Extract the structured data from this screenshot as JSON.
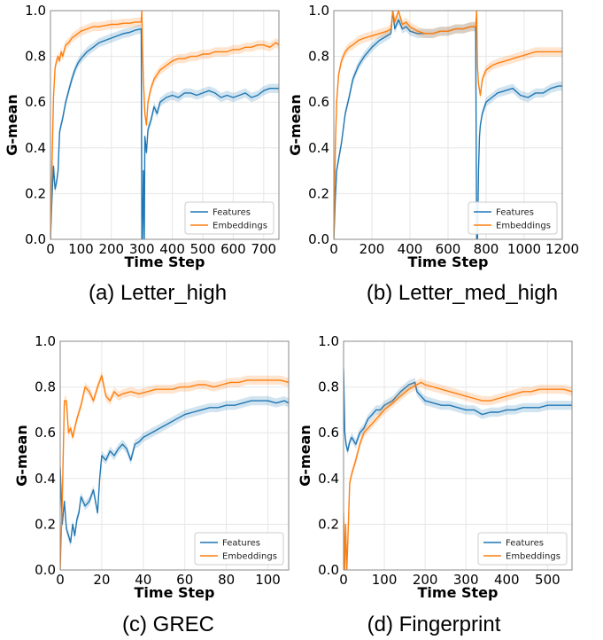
{
  "colors": {
    "features": "#1f77b4",
    "embeddings": "#ff7f0e",
    "grid": "#e6e6e6"
  },
  "chart_data": [
    {
      "type": "line",
      "caption": "(a) Letter_high",
      "xlabel": "Time Step",
      "ylabel": "G-mean",
      "xlim": [
        0,
        750
      ],
      "ylim": [
        0,
        1
      ],
      "xticks": [
        "0",
        "100",
        "200",
        "300",
        "400",
        "500",
        "600",
        "700"
      ],
      "yticks": [
        "0.0",
        "0.2",
        "0.4",
        "0.6",
        "0.8",
        "1.0"
      ],
      "grid": true,
      "legend": "bottom-right",
      "series": [
        {
          "name": "Features",
          "color": "#1f77b4",
          "x": [
            0,
            5,
            10,
            15,
            20,
            25,
            30,
            35,
            40,
            50,
            60,
            70,
            80,
            90,
            100,
            120,
            140,
            160,
            180,
            200,
            220,
            240,
            260,
            280,
            298,
            300,
            302,
            305,
            308,
            310,
            315,
            320,
            330,
            340,
            350,
            360,
            380,
            400,
            420,
            440,
            460,
            480,
            500,
            520,
            540,
            560,
            580,
            600,
            620,
            640,
            660,
            680,
            700,
            720,
            740,
            750
          ],
          "y": [
            0.0,
            0.18,
            0.32,
            0.22,
            0.25,
            0.3,
            0.47,
            0.5,
            0.53,
            0.6,
            0.65,
            0.7,
            0.74,
            0.77,
            0.79,
            0.82,
            0.84,
            0.86,
            0.87,
            0.88,
            0.89,
            0.9,
            0.905,
            0.915,
            0.92,
            0.0,
            0.0,
            0.3,
            0.0,
            0.45,
            0.38,
            0.48,
            0.52,
            0.58,
            0.55,
            0.6,
            0.62,
            0.63,
            0.62,
            0.64,
            0.64,
            0.63,
            0.64,
            0.65,
            0.64,
            0.62,
            0.63,
            0.62,
            0.63,
            0.64,
            0.62,
            0.63,
            0.65,
            0.66,
            0.66,
            0.66
          ]
        },
        {
          "name": "Embeddings",
          "color": "#ff7f0e",
          "x": [
            0,
            5,
            10,
            15,
            20,
            25,
            30,
            35,
            40,
            50,
            60,
            70,
            80,
            90,
            100,
            120,
            140,
            160,
            180,
            200,
            220,
            240,
            260,
            280,
            298,
            300,
            302,
            305,
            310,
            315,
            320,
            330,
            340,
            350,
            360,
            380,
            400,
            420,
            440,
            460,
            480,
            500,
            520,
            540,
            560,
            580,
            600,
            620,
            640,
            660,
            680,
            700,
            720,
            740,
            750
          ],
          "y": [
            0.0,
            0.32,
            0.62,
            0.75,
            0.78,
            0.8,
            0.78,
            0.82,
            0.8,
            0.85,
            0.86,
            0.88,
            0.89,
            0.9,
            0.91,
            0.92,
            0.93,
            0.93,
            0.935,
            0.94,
            0.94,
            0.945,
            0.945,
            0.95,
            0.95,
            1.0,
            0.85,
            0.7,
            0.55,
            0.5,
            0.6,
            0.66,
            0.7,
            0.72,
            0.74,
            0.76,
            0.78,
            0.79,
            0.79,
            0.8,
            0.8,
            0.81,
            0.81,
            0.82,
            0.82,
            0.82,
            0.83,
            0.83,
            0.84,
            0.84,
            0.85,
            0.85,
            0.84,
            0.86,
            0.85
          ]
        }
      ]
    },
    {
      "type": "line",
      "caption": "(b) Letter_med_high",
      "xlabel": "Time Step",
      "ylabel": "G-mean",
      "xlim": [
        0,
        1200
      ],
      "ylim": [
        0,
        1
      ],
      "xticks": [
        "0",
        "200",
        "400",
        "600",
        "800",
        "1000",
        "1200"
      ],
      "yticks": [
        "0.0",
        "0.2",
        "0.4",
        "0.6",
        "0.8",
        "1.0"
      ],
      "grid": true,
      "legend": "bottom-right",
      "series": [
        {
          "name": "Features",
          "color": "#1f77b4",
          "x": [
            0,
            8,
            15,
            25,
            40,
            60,
            80,
            100,
            130,
            160,
            200,
            240,
            280,
            300,
            310,
            320,
            340,
            360,
            380,
            400,
            440,
            480,
            520,
            560,
            600,
            640,
            680,
            720,
            745,
            750,
            755,
            760,
            765,
            770,
            780,
            800,
            830,
            860,
            900,
            940,
            980,
            1020,
            1060,
            1100,
            1140,
            1180,
            1200
          ],
          "y": [
            0.0,
            0.18,
            0.3,
            0.35,
            0.42,
            0.55,
            0.62,
            0.7,
            0.76,
            0.8,
            0.84,
            0.87,
            0.89,
            0.9,
            1.0,
            0.92,
            0.96,
            0.92,
            0.93,
            0.91,
            0.9,
            0.9,
            0.9,
            0.91,
            0.91,
            0.92,
            0.92,
            0.93,
            0.93,
            0.0,
            0.0,
            0.3,
            0.45,
            0.5,
            0.55,
            0.6,
            0.62,
            0.64,
            0.65,
            0.66,
            0.63,
            0.62,
            0.64,
            0.64,
            0.66,
            0.67,
            0.67
          ]
        },
        {
          "name": "Embeddings",
          "color": "#ff7f0e",
          "x": [
            0,
            8,
            15,
            25,
            40,
            60,
            80,
            100,
            130,
            160,
            200,
            240,
            280,
            300,
            310,
            320,
            340,
            360,
            380,
            400,
            440,
            480,
            520,
            560,
            600,
            640,
            680,
            720,
            745,
            750,
            755,
            760,
            770,
            780,
            800,
            830,
            860,
            900,
            940,
            980,
            1020,
            1060,
            1100,
            1140,
            1180,
            1200
          ],
          "y": [
            0.0,
            0.4,
            0.6,
            0.72,
            0.78,
            0.82,
            0.84,
            0.85,
            0.87,
            0.88,
            0.89,
            0.9,
            0.91,
            0.92,
            1.0,
            0.95,
            1.0,
            0.94,
            0.95,
            0.93,
            0.91,
            0.9,
            0.9,
            0.91,
            0.91,
            0.92,
            0.92,
            0.93,
            0.93,
            1.0,
            0.75,
            0.68,
            0.63,
            0.7,
            0.74,
            0.76,
            0.77,
            0.78,
            0.79,
            0.8,
            0.81,
            0.82,
            0.82,
            0.82,
            0.82,
            0.82
          ]
        }
      ]
    },
    {
      "type": "line",
      "caption": "(c) GREC",
      "xlabel": "Time Step",
      "ylabel": "G-mean",
      "xlim": [
        0,
        110
      ],
      "ylim": [
        0,
        1
      ],
      "xticks": [
        "0",
        "20",
        "40",
        "60",
        "80",
        "100"
      ],
      "yticks": [
        "0.0",
        "0.2",
        "0.4",
        "0.6",
        "0.8",
        "1.0"
      ],
      "grid": true,
      "legend": "bottom-right",
      "series": [
        {
          "name": "Features",
          "color": "#1f77b4",
          "x": [
            0,
            1,
            2,
            3,
            4,
            5,
            6,
            7,
            8,
            9,
            10,
            12,
            14,
            16,
            18,
            19,
            20,
            22,
            24,
            26,
            28,
            30,
            32,
            34,
            36,
            38,
            40,
            44,
            48,
            52,
            56,
            60,
            64,
            68,
            72,
            76,
            80,
            84,
            88,
            92,
            96,
            100,
            104,
            108,
            110
          ],
          "y": [
            0.45,
            0.2,
            0.3,
            0.18,
            0.15,
            0.12,
            0.2,
            0.15,
            0.22,
            0.25,
            0.32,
            0.28,
            0.3,
            0.35,
            0.25,
            0.4,
            0.5,
            0.48,
            0.52,
            0.5,
            0.53,
            0.55,
            0.53,
            0.48,
            0.55,
            0.56,
            0.58,
            0.6,
            0.62,
            0.64,
            0.66,
            0.68,
            0.69,
            0.7,
            0.71,
            0.71,
            0.72,
            0.72,
            0.73,
            0.74,
            0.74,
            0.74,
            0.73,
            0.74,
            0.73
          ]
        },
        {
          "name": "Embeddings",
          "color": "#ff7f0e",
          "x": [
            0,
            1,
            2,
            3,
            4,
            5,
            6,
            7,
            8,
            10,
            12,
            14,
            16,
            18,
            20,
            22,
            24,
            26,
            28,
            30,
            34,
            38,
            42,
            46,
            50,
            54,
            58,
            62,
            66,
            70,
            74,
            78,
            82,
            86,
            90,
            94,
            98,
            102,
            106,
            110
          ],
          "y": [
            0.0,
            0.3,
            0.74,
            0.74,
            0.6,
            0.62,
            0.58,
            0.62,
            0.66,
            0.72,
            0.8,
            0.78,
            0.74,
            0.8,
            0.85,
            0.76,
            0.74,
            0.78,
            0.76,
            0.77,
            0.78,
            0.77,
            0.78,
            0.79,
            0.79,
            0.79,
            0.8,
            0.8,
            0.81,
            0.81,
            0.8,
            0.81,
            0.82,
            0.82,
            0.83,
            0.83,
            0.83,
            0.83,
            0.83,
            0.82
          ]
        }
      ]
    },
    {
      "type": "line",
      "caption": "(d) Fingerprint",
      "xlabel": "Time Step",
      "ylabel": "G-mean",
      "xlim": [
        0,
        560
      ],
      "ylim": [
        0,
        1
      ],
      "xticks": [
        "0",
        "100",
        "200",
        "300",
        "400",
        "500"
      ],
      "yticks": [
        "0.0",
        "0.2",
        "0.4",
        "0.6",
        "0.8",
        "1.0"
      ],
      "grid": true,
      "legend": "bottom-right",
      "series": [
        {
          "name": "Features",
          "color": "#1f77b4",
          "x": [
            0,
            3,
            6,
            10,
            15,
            20,
            30,
            40,
            50,
            60,
            70,
            80,
            90,
            100,
            120,
            140,
            160,
            175,
            180,
            190,
            200,
            220,
            240,
            260,
            280,
            300,
            320,
            340,
            360,
            380,
            400,
            420,
            440,
            460,
            480,
            500,
            520,
            540,
            560
          ],
          "y": [
            0.88,
            0.6,
            0.55,
            0.52,
            0.56,
            0.58,
            0.55,
            0.6,
            0.62,
            0.66,
            0.68,
            0.7,
            0.7,
            0.72,
            0.74,
            0.78,
            0.81,
            0.82,
            0.78,
            0.76,
            0.74,
            0.73,
            0.72,
            0.72,
            0.71,
            0.7,
            0.7,
            0.68,
            0.69,
            0.69,
            0.7,
            0.7,
            0.71,
            0.71,
            0.71,
            0.72,
            0.72,
            0.72,
            0.72
          ]
        },
        {
          "name": "Embeddings",
          "color": "#ff7f0e",
          "x": [
            0,
            3,
            5,
            8,
            10,
            15,
            20,
            25,
            30,
            40,
            50,
            60,
            70,
            80,
            90,
            100,
            120,
            140,
            160,
            180,
            190,
            200,
            220,
            240,
            260,
            280,
            300,
            320,
            340,
            360,
            380,
            400,
            420,
            440,
            460,
            480,
            500,
            520,
            540,
            560
          ],
          "y": [
            0.25,
            0.0,
            0.2,
            0.0,
            0.1,
            0.38,
            0.42,
            0.45,
            0.48,
            0.55,
            0.6,
            0.62,
            0.64,
            0.66,
            0.68,
            0.7,
            0.73,
            0.76,
            0.79,
            0.81,
            0.82,
            0.81,
            0.8,
            0.79,
            0.78,
            0.77,
            0.76,
            0.75,
            0.74,
            0.74,
            0.75,
            0.76,
            0.77,
            0.78,
            0.78,
            0.79,
            0.79,
            0.79,
            0.79,
            0.78
          ]
        }
      ]
    }
  ]
}
